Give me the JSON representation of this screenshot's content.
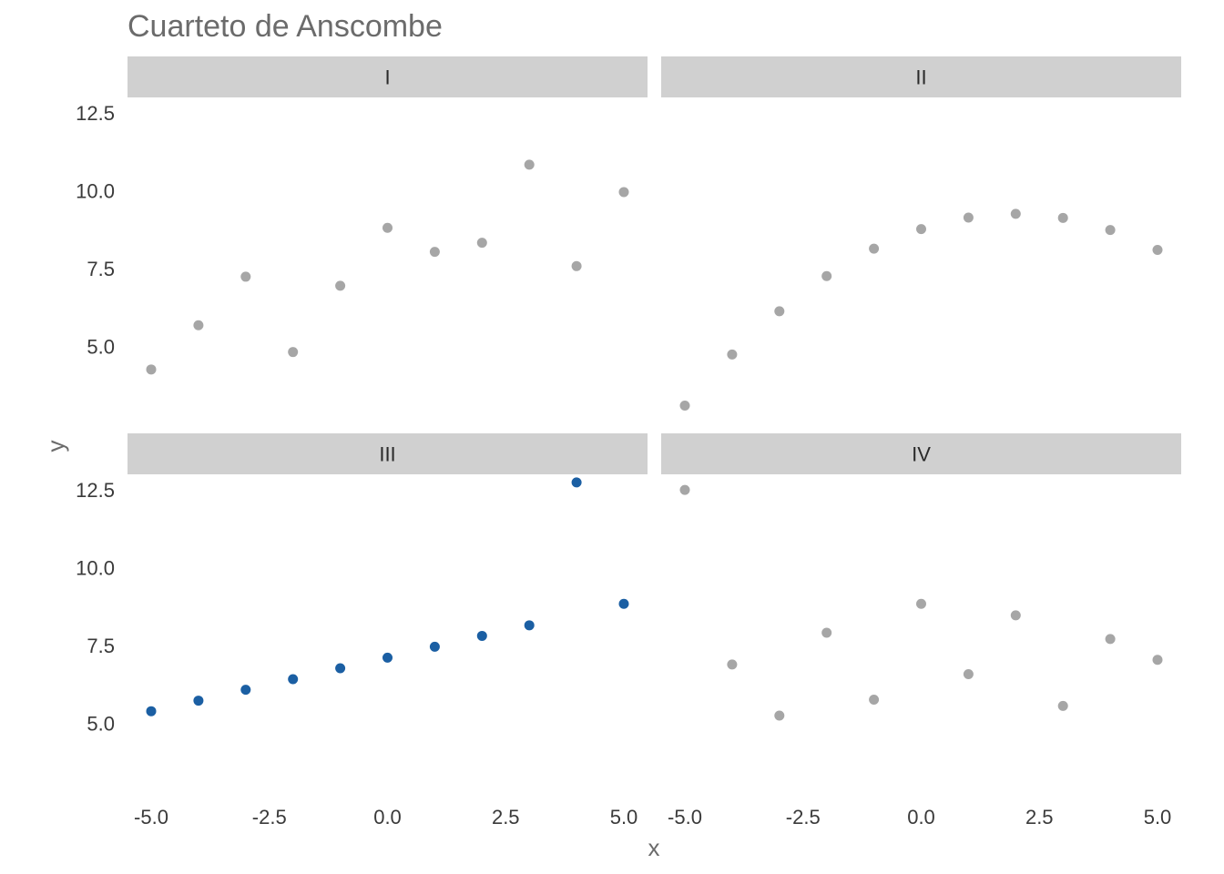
{
  "chart_data": {
    "type": "scatter",
    "title": "Cuarteto de Anscombe",
    "xlabel": "x",
    "ylabel": "y",
    "xlim": [
      -5.0,
      5.0
    ],
    "ylim": [
      2.5,
      13.0
    ],
    "x_ticks": [
      "-5.0",
      "-2.5",
      "0.0",
      "2.5",
      "5.0"
    ],
    "y_ticks": [
      "5.0",
      "7.5",
      "10.0",
      "12.5"
    ],
    "x_tick_values": [
      -5.0,
      -2.5,
      0.0,
      2.5,
      5.0
    ],
    "y_tick_values": [
      5.0,
      7.5,
      10.0,
      12.5
    ],
    "grid": false,
    "colors": {
      "highlight": "#1b5fa3",
      "muted": "#a6a6a6",
      "strip": "#d0d0d0",
      "title": "#6b6b6b",
      "tick": "#3a3a3a"
    },
    "panels": [
      {
        "name": "I",
        "highlight": false,
        "points": [
          [
            -5,
            4.26
          ],
          [
            -4,
            5.68
          ],
          [
            -3,
            7.24
          ],
          [
            -2,
            4.82
          ],
          [
            -1,
            6.95
          ],
          [
            0,
            8.81
          ],
          [
            1,
            8.04
          ],
          [
            2,
            8.33
          ],
          [
            3,
            10.84
          ],
          [
            4,
            7.58
          ],
          [
            5,
            9.96
          ]
        ]
      },
      {
        "name": "II",
        "highlight": false,
        "points": [
          [
            -5,
            3.1
          ],
          [
            -4,
            4.74
          ],
          [
            -3,
            6.13
          ],
          [
            -2,
            7.26
          ],
          [
            -1,
            8.14
          ],
          [
            0,
            8.77
          ],
          [
            1,
            9.14
          ],
          [
            2,
            9.26
          ],
          [
            3,
            9.13
          ],
          [
            4,
            8.74
          ],
          [
            5,
            8.1
          ]
        ]
      },
      {
        "name": "III",
        "highlight": true,
        "points": [
          [
            -5,
            5.39
          ],
          [
            -4,
            5.73
          ],
          [
            -3,
            6.08
          ],
          [
            -2,
            6.42
          ],
          [
            -1,
            6.77
          ],
          [
            0,
            7.11
          ],
          [
            1,
            7.46
          ],
          [
            2,
            7.81
          ],
          [
            3,
            8.15
          ],
          [
            4,
            12.74
          ],
          [
            5,
            8.84
          ]
        ]
      },
      {
        "name": "IV",
        "highlight": false,
        "points": [
          [
            -5,
            12.5
          ],
          [
            -4,
            6.89
          ],
          [
            -3,
            5.25
          ],
          [
            -2,
            7.91
          ],
          [
            -1,
            5.76
          ],
          [
            0,
            8.84
          ],
          [
            1,
            6.58
          ],
          [
            2,
            8.47
          ],
          [
            3,
            5.56
          ],
          [
            4,
            7.71
          ],
          [
            5,
            7.04
          ]
        ]
      }
    ]
  }
}
